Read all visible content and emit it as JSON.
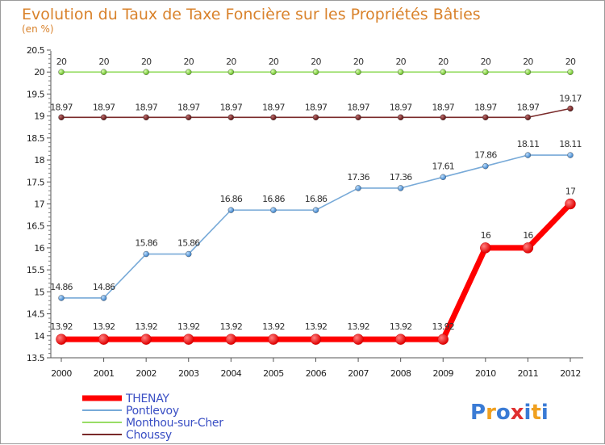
{
  "chart_data": {
    "type": "line",
    "title": "Evolution du Taux de Taxe Foncière sur les Propriétés Bâties",
    "subtitle": "(en %)",
    "x": [
      "2000",
      "2001",
      "2002",
      "2003",
      "2004",
      "2005",
      "2006",
      "2007",
      "2008",
      "2009",
      "2010",
      "2011",
      "2012"
    ],
    "ylim": [
      13.5,
      20.5
    ],
    "yticks": [
      "13.5",
      "14",
      "14.5",
      "15",
      "15.5",
      "16",
      "16.5",
      "17",
      "17.5",
      "18",
      "18.5",
      "19",
      "19.5",
      "20",
      "20.5"
    ],
    "grid": false,
    "legend_position": "bottom-left",
    "series": [
      {
        "name": "THENAY",
        "color": "#ff0000",
        "values": [
          13.92,
          13.92,
          13.92,
          13.92,
          13.92,
          13.92,
          13.92,
          13.92,
          13.92,
          13.92,
          16,
          16,
          17
        ],
        "labels": [
          "13.92",
          "13.92",
          "13.92",
          "13.92",
          "13.92",
          "13.92",
          "13.92",
          "13.92",
          "13.92",
          "13.92",
          "16",
          "16",
          "17"
        ]
      },
      {
        "name": "Pontlevoy",
        "color": "#78aad8",
        "values": [
          14.86,
          14.86,
          15.86,
          15.86,
          16.86,
          16.86,
          16.86,
          17.36,
          17.36,
          17.61,
          17.86,
          18.11,
          18.11
        ],
        "labels": [
          "14.86",
          "14.86",
          "15.86",
          "15.86",
          "16.86",
          "16.86",
          "16.86",
          "17.36",
          "17.36",
          "17.61",
          "17.86",
          "18.11",
          "18.11"
        ]
      },
      {
        "name": "Monthou-sur-Cher",
        "color": "#99dd66",
        "values": [
          20,
          20,
          20,
          20,
          20,
          20,
          20,
          20,
          20,
          20,
          20,
          20,
          20
        ],
        "labels": [
          "20",
          "20",
          "20",
          "20",
          "20",
          "20",
          "20",
          "20",
          "20",
          "20",
          "20",
          "20",
          "20"
        ]
      },
      {
        "name": "Choussy",
        "color": "#7a2a2a",
        "values": [
          18.97,
          18.97,
          18.97,
          18.97,
          18.97,
          18.97,
          18.97,
          18.97,
          18.97,
          18.97,
          18.97,
          18.97,
          19.17
        ],
        "labels": [
          "18.97",
          "18.97",
          "18.97",
          "18.97",
          "18.97",
          "18.97",
          "18.97",
          "18.97",
          "18.97",
          "18.97",
          "18.97",
          "18.97",
          "19.17"
        ]
      }
    ]
  },
  "logo": {
    "text": "Proxiti",
    "letters": [
      "P",
      "r",
      "o",
      "x",
      "i",
      "t",
      "i"
    ],
    "colors": [
      "#3a7bd5",
      "#f0a020",
      "#3a7bd5",
      "#e03030",
      "#3a7bd5",
      "#f0a020",
      "#3a7bd5"
    ]
  }
}
